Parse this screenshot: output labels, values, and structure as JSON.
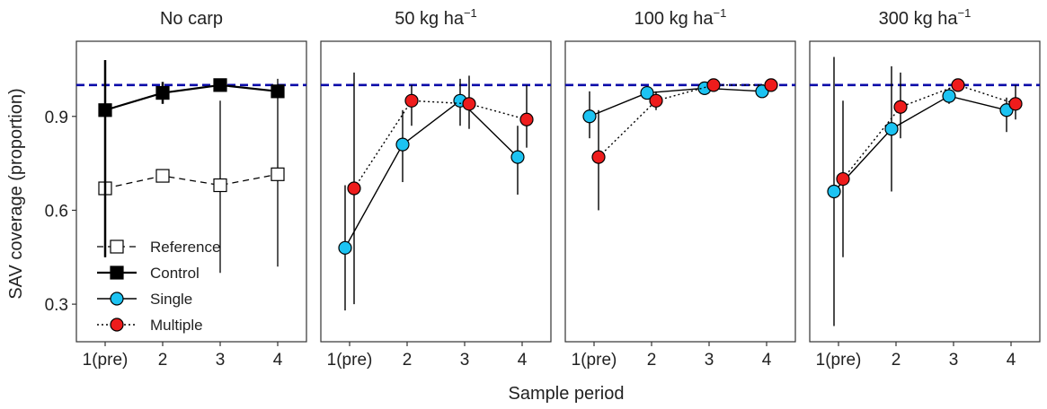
{
  "chart_data": {
    "type": "line",
    "xlabel": "Sample period",
    "ylabel": "SAV coverage (proportion)",
    "categories": [
      "1(pre)",
      "2",
      "3",
      "4"
    ],
    "yticks": [
      "0.3",
      "0.6",
      "0.9"
    ],
    "ylim": [
      0.18,
      1.14
    ],
    "reference_line": 1.0,
    "reference_color": "#0a0aa8",
    "colors": {
      "single": "#1cc3f2",
      "multiple": "#ee1c1c",
      "control": "#000000",
      "reference": "#ffffff"
    },
    "legend": {
      "position": "bottom-left of first panel",
      "entries": [
        {
          "key": "reference",
          "label": "Reference"
        },
        {
          "key": "control",
          "label": "Control"
        },
        {
          "key": "single",
          "label": "Single"
        },
        {
          "key": "multiple",
          "label": "Multiple"
        }
      ]
    },
    "panels": [
      {
        "title": "No carp",
        "title_sup": "",
        "series": [
          {
            "key": "reference",
            "name": "Reference",
            "values": [
              0.67,
              0.71,
              0.68,
              0.715
            ],
            "error": [
              [
                0.45,
                0.88
              ],
              null,
              [
                0.4,
                0.95
              ],
              [
                0.42,
                1.02
              ]
            ]
          },
          {
            "key": "control",
            "name": "Control",
            "values": [
              0.92,
              0.975,
              1.0,
              0.98
            ],
            "error": [
              [
                0.45,
                1.08
              ],
              [
                0.94,
                1.01
              ],
              null,
              null
            ]
          }
        ]
      },
      {
        "title": "50 kg ha",
        "title_sup": "−1",
        "series": [
          {
            "key": "single",
            "name": "Single",
            "values": [
              0.48,
              0.81,
              0.95,
              0.77
            ],
            "error": [
              [
                0.28,
                0.68
              ],
              [
                0.69,
                0.92
              ],
              [
                0.87,
                1.02
              ],
              [
                0.65,
                0.87
              ]
            ]
          },
          {
            "key": "multiple",
            "name": "Multiple",
            "values": [
              0.67,
              0.95,
              0.94,
              0.89
            ],
            "error": [
              [
                0.3,
                1.04
              ],
              [
                0.87,
                1.0
              ],
              [
                0.86,
                1.03
              ],
              [
                0.8,
                1.0
              ]
            ]
          }
        ]
      },
      {
        "title": "100 kg ha",
        "title_sup": "−1",
        "series": [
          {
            "key": "single",
            "name": "Single",
            "values": [
              0.9,
              0.975,
              0.99,
              0.98
            ],
            "error": [
              [
                0.83,
                0.98
              ],
              null,
              null,
              null
            ]
          },
          {
            "key": "multiple",
            "name": "Multiple",
            "values": [
              0.77,
              0.95,
              1.0,
              1.0
            ],
            "error": [
              [
                0.6,
                0.92
              ],
              [
                0.92,
                0.98
              ],
              null,
              null
            ]
          }
        ]
      },
      {
        "title": "300 kg ha",
        "title_sup": "−1",
        "series": [
          {
            "key": "single",
            "name": "Single",
            "values": [
              0.66,
              0.86,
              0.965,
              0.92
            ],
            "error": [
              [
                0.23,
                1.09
              ],
              [
                0.66,
                1.06
              ],
              [
                0.94,
                0.99
              ],
              [
                0.85,
                0.96
              ]
            ]
          },
          {
            "key": "multiple",
            "name": "Multiple",
            "values": [
              0.7,
              0.93,
              1.0,
              0.94
            ],
            "error": [
              [
                0.45,
                0.95
              ],
              [
                0.83,
                1.04
              ],
              null,
              [
                0.89,
                1.0
              ]
            ]
          }
        ]
      }
    ]
  }
}
